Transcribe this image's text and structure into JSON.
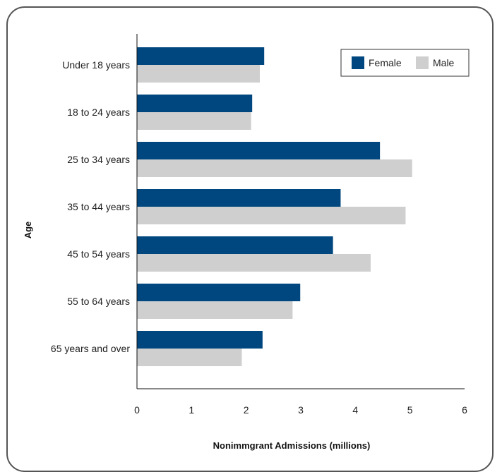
{
  "chart_data": {
    "type": "bar",
    "orientation": "horizontal",
    "categories": [
      "Under 18 years",
      "18 to 24 years",
      "25 to 34 years",
      "35 to 44 years",
      "45 to 54 years",
      "55 to 64 years",
      "65 years and over"
    ],
    "series": [
      {
        "name": "Female",
        "color": "#00477F",
        "values": [
          2.33,
          2.11,
          4.45,
          3.73,
          3.59,
          2.99,
          2.3
        ]
      },
      {
        "name": "Male",
        "color": "#CFCFD0",
        "values": [
          2.25,
          2.09,
          5.04,
          4.92,
          4.28,
          2.85,
          1.92
        ]
      }
    ],
    "xlabel": "Nonimmgrant Admissions (millions)",
    "ylabel": "Age",
    "xlim": [
      0,
      6
    ],
    "xticks": [
      "0",
      "1",
      "2",
      "3",
      "4",
      "5",
      "6"
    ],
    "legend_position": "top-right",
    "grid": false
  }
}
